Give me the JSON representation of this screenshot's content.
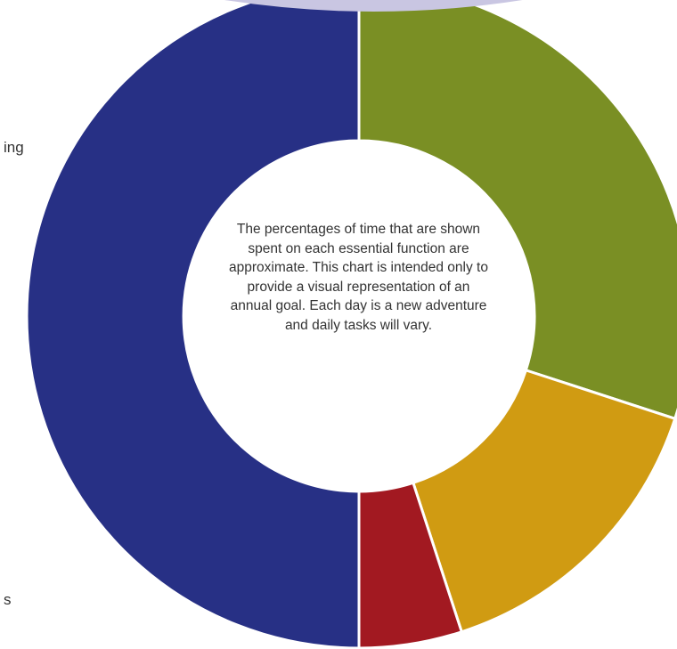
{
  "chart_data": {
    "type": "pie",
    "variant": "donut",
    "slices": [
      {
        "name": "",
        "value": 30,
        "color": "#7A8F24"
      },
      {
        "name": "",
        "value": 15,
        "color": "#D09B12"
      },
      {
        "name": "",
        "value": 5,
        "color": "#A21921"
      },
      {
        "name": "",
        "value": 50,
        "color": "#273085"
      }
    ],
    "partial_labels": [
      "ing",
      "s"
    ],
    "center_text": "The percentages of time that are shown spent on each essential function are approximate. This chart is intended only to provide a visual representation of an annual goal. Each day is a new adventure and daily tasks will vary.",
    "top_banner_color": "#C9C6E2"
  }
}
